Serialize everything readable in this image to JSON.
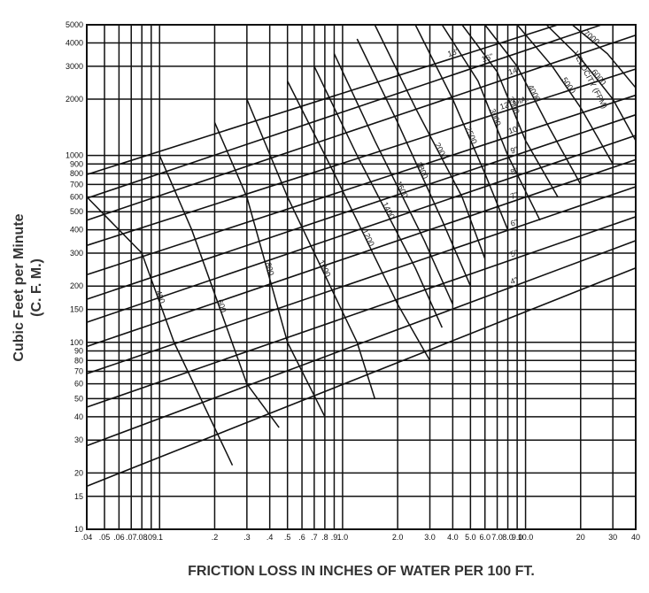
{
  "chart_data": {
    "type": "line",
    "xlabel": "FRICTION LOSS IN INCHES OF WATER PER 100 FT.",
    "ylabel_line1": "Cubic Feet per Minute",
    "ylabel_line2": "(C. F. M.)",
    "x_scale": "log",
    "y_scale": "log",
    "xlim": [
      0.04,
      40
    ],
    "ylim": [
      10,
      5000
    ],
    "grid": true,
    "x_ticks": [
      0.04,
      0.05,
      0.06,
      0.07,
      0.08,
      0.09,
      0.1,
      0.2,
      0.3,
      0.4,
      0.5,
      0.6,
      0.7,
      0.8,
      0.9,
      1.0,
      2.0,
      3.0,
      4.0,
      5.0,
      6.0,
      7.0,
      8.0,
      9.0,
      10.0,
      20,
      30,
      40
    ],
    "x_tick_labels": [
      ".04",
      ".05",
      ".06",
      ".07",
      ".08",
      ".09",
      ".1",
      ".2",
      ".3",
      ".4",
      ".5",
      ".6",
      ".7",
      ".8",
      ".9",
      "1.0",
      "2.0",
      "3.0",
      "4.0",
      "5.0",
      "6.0",
      "7.0",
      "8.0",
      "9.0",
      "10.0",
      "20",
      "30",
      "40"
    ],
    "y_ticks": [
      10,
      15,
      20,
      30,
      40,
      50,
      60,
      70,
      80,
      90,
      100,
      150,
      200,
      300,
      400,
      500,
      600,
      700,
      800,
      900,
      1000,
      2000,
      3000,
      4000,
      5000
    ],
    "y_tick_labels": [
      "10",
      "15",
      "20",
      "30",
      "40",
      "50",
      "60",
      "70",
      "80",
      "90",
      "100",
      "150",
      "200",
      "300",
      "400",
      "500",
      "600",
      "700",
      "800",
      "900",
      "1000",
      "2000",
      "3000",
      "4000",
      "5000"
    ],
    "series_groups": [
      {
        "name": "duct diameter",
        "unit_label": "DIA.",
        "lines": [
          {
            "label": "18\"",
            "points": [
              [
                0.04,
                790
              ],
              [
                15,
                5000
              ]
            ]
          },
          {
            "label": "16\"",
            "points": [
              [
                0.04,
                590
              ],
              [
                26,
                5000
              ]
            ]
          },
          {
            "label": "14\"",
            "points": [
              [
                0.04,
                450
              ],
              [
                40,
                4400
              ]
            ]
          },
          {
            "label": "12\" DIA.",
            "points": [
              [
                0.04,
                330
              ],
              [
                40,
                2900
              ]
            ]
          },
          {
            "label": "10\"",
            "points": [
              [
                0.04,
                230
              ],
              [
                40,
                2100
              ]
            ]
          },
          {
            "label": "9\"",
            "points": [
              [
                0.04,
                170
              ],
              [
                40,
                1650
              ]
            ]
          },
          {
            "label": "8\"",
            "points": [
              [
                0.04,
                128
              ],
              [
                40,
                1280
              ]
            ]
          },
          {
            "label": "7\"",
            "points": [
              [
                0.04,
                95
              ],
              [
                40,
                950
              ]
            ]
          },
          {
            "label": "6\"",
            "points": [
              [
                0.04,
                68
              ],
              [
                40,
                680
              ]
            ]
          },
          {
            "label": "5\"",
            "points": [
              [
                0.04,
                45
              ],
              [
                40,
                470
              ]
            ]
          },
          {
            "label": "4\"",
            "points": [
              [
                0.04,
                28
              ],
              [
                40,
                350
              ]
            ]
          },
          {
            "label": "",
            "points": [
              [
                0.04,
                17
              ],
              [
                40,
                250
              ]
            ]
          }
        ]
      },
      {
        "name": "velocity",
        "title": "VELOCITY (FPM)",
        "curves": [
          {
            "label": "400",
            "points": [
              [
                0.04,
                600
              ],
              [
                0.08,
                300
              ],
              [
                0.12,
                100
              ],
              [
                0.25,
                22
              ]
            ]
          },
          {
            "label": "600",
            "points": [
              [
                0.1,
                1000
              ],
              [
                0.15,
                400
              ],
              [
                0.3,
                60
              ],
              [
                0.45,
                35
              ]
            ]
          },
          {
            "label": "800",
            "points": [
              [
                0.2,
                1500
              ],
              [
                0.3,
                600
              ],
              [
                0.5,
                100
              ],
              [
                0.8,
                40
              ]
            ]
          },
          {
            "label": "1000",
            "points": [
              [
                0.3,
                2000
              ],
              [
                0.5,
                600
              ],
              [
                1.2,
                100
              ],
              [
                1.5,
                50
              ]
            ]
          },
          {
            "label": "1200",
            "points": [
              [
                0.5,
                2500
              ],
              [
                0.9,
                800
              ],
              [
                2.0,
                160
              ],
              [
                3.0,
                80
              ]
            ]
          },
          {
            "label": "1400",
            "points": [
              [
                0.7,
                3000
              ],
              [
                1.2,
                1000
              ],
              [
                2.5,
                250
              ],
              [
                3.5,
                120
              ]
            ]
          },
          {
            "label": "1600",
            "points": [
              [
                0.9,
                3500
              ],
              [
                1.5,
                1200
              ],
              [
                2.8,
                350
              ],
              [
                4.0,
                160
              ]
            ]
          },
          {
            "label": "1800",
            "points": [
              [
                1.2,
                4200
              ],
              [
                2.0,
                1500
              ],
              [
                3.5,
                450
              ],
              [
                5.0,
                200
              ]
            ]
          },
          {
            "label": "2000",
            "points": [
              [
                1.5,
                5000
              ],
              [
                2.5,
                1800
              ],
              [
                4.5,
                600
              ],
              [
                6.0,
                280
              ]
            ]
          },
          {
            "label": "2500",
            "points": [
              [
                2.5,
                5000
              ],
              [
                4.0,
                2000
              ],
              [
                6.0,
                800
              ],
              [
                8.0,
                400
              ]
            ]
          },
          {
            "label": "3000",
            "points": [
              [
                3.5,
                5000
              ],
              [
                5.5,
                2500
              ],
              [
                8.0,
                1000
              ],
              [
                12,
                450
              ]
            ]
          },
          {
            "label": "3500",
            "points": [
              [
                4.5,
                5000
              ],
              [
                7.0,
                2800
              ],
              [
                10,
                1200
              ],
              [
                15,
                600
              ]
            ]
          },
          {
            "label": "4000",
            "points": [
              [
                6.0,
                5000
              ],
              [
                9.0,
                3000
              ],
              [
                13,
                1500
              ],
              [
                20,
                700
              ]
            ]
          },
          {
            "label": "5000",
            "points": [
              [
                9.0,
                5000
              ],
              [
                14,
                3000
              ],
              [
                20,
                1800
              ],
              [
                30,
                900
              ]
            ]
          },
          {
            "label": "6000",
            "points": [
              [
                13,
                5000
              ],
              [
                20,
                3300
              ],
              [
                30,
                2000
              ],
              [
                40,
                1200
              ]
            ]
          },
          {
            "label": "7000",
            "points": [
              [
                18,
                5000
              ],
              [
                28,
                3500
              ],
              [
                40,
                2300
              ]
            ]
          }
        ]
      }
    ]
  }
}
